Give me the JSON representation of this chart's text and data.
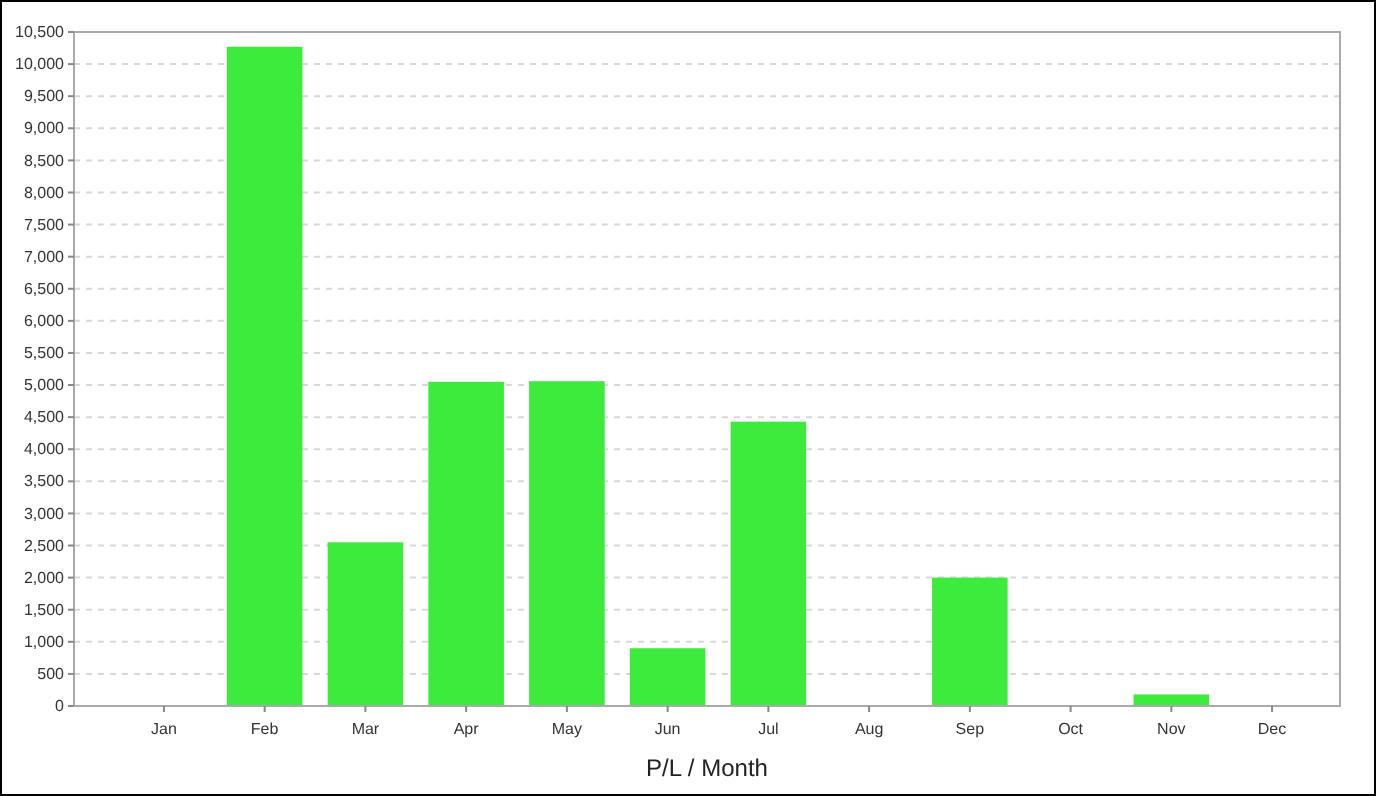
{
  "chart_data": {
    "type": "bar",
    "xlabel": "P/L / Month",
    "categories": [
      "Jan",
      "Feb",
      "Mar",
      "Apr",
      "May",
      "Jun",
      "Jul",
      "Aug",
      "Sep",
      "Oct",
      "Nov",
      "Dec"
    ],
    "values": [
      null,
      10270,
      2550,
      5050,
      5060,
      900,
      4430,
      null,
      2000,
      null,
      180,
      null
    ],
    "color": "#3deb3d",
    "ylim": [
      0,
      10500
    ],
    "yticks": [
      {
        "value": 0,
        "label": "0"
      },
      {
        "value": 500,
        "label": "500"
      },
      {
        "value": 1000,
        "label": "1,000"
      },
      {
        "value": 1500,
        "label": "1,500"
      },
      {
        "value": 2000,
        "label": "2,000"
      },
      {
        "value": 2500,
        "label": "2,500"
      },
      {
        "value": 3000,
        "label": "3,000"
      },
      {
        "value": 3500,
        "label": "3,500"
      },
      {
        "value": 4000,
        "label": "4,000"
      },
      {
        "value": 4500,
        "label": "4,500"
      },
      {
        "value": 5000,
        "label": "5,000"
      },
      {
        "value": 5500,
        "label": "5,500"
      },
      {
        "value": 6000,
        "label": "6,000"
      },
      {
        "value": 6500,
        "label": "6,500"
      },
      {
        "value": 7000,
        "label": "7,000"
      },
      {
        "value": 7500,
        "label": "7,500"
      },
      {
        "value": 8000,
        "label": "8,000"
      },
      {
        "value": 8500,
        "label": "8,500"
      },
      {
        "value": 9000,
        "label": "9,000"
      },
      {
        "value": 9500,
        "label": "9,500"
      },
      {
        "value": 10000,
        "label": "10,000"
      },
      {
        "value": 10500,
        "label": "10,500"
      }
    ],
    "grid": "y"
  }
}
